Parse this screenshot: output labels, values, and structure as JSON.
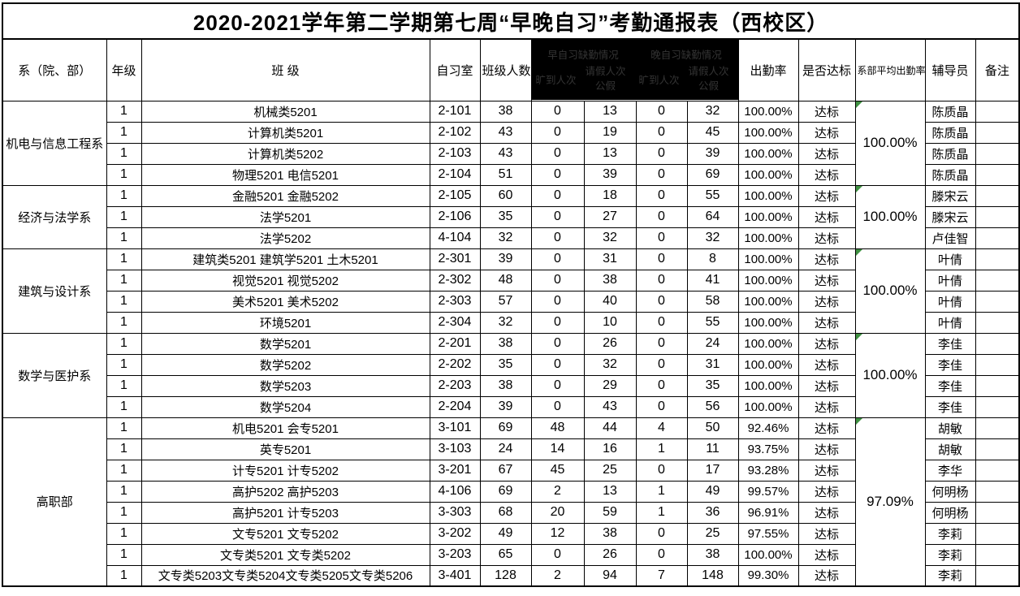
{
  "title": "2020-2021学年第二学期第七周“早晚自习”考勤通报表（西校区）",
  "header": {
    "department": "系（院、部）",
    "grade": "年级",
    "class_name": "班  级",
    "study_room": "自习室",
    "class_size": "班级人数",
    "redacted_groups": [
      {
        "title": "早自习缺勤情况",
        "sub_left": "旷到人次",
        "sub_right_line1": "请假人次",
        "sub_right_line2": "公假"
      },
      {
        "title": "晚自习缺勤情况",
        "sub_left": "旷到人次",
        "sub_right_line1": "请假人次",
        "sub_right_line2": "公假"
      }
    ],
    "attendance_rate": "出勤率",
    "meets_standard": "是否达标",
    "dept_average_rate": "系部平均出勤率",
    "counselor": "辅导员",
    "remark": "备注"
  },
  "colors": {
    "border": "#000000",
    "redaction_fill": "#000000",
    "comment_triangle": "#3f9142"
  },
  "groups": [
    {
      "department": "机电与信息工程系",
      "average_rate": "100.00%",
      "rows": [
        {
          "grade": "1",
          "class_name": "机械类5201",
          "room": "2-101",
          "class_size": "38",
          "morning_absence": "0",
          "morning_leave": "13",
          "evening_absence": "0",
          "evening_leave": "32",
          "attendance_rate": "100.00%",
          "meets_standard": "达标",
          "counselor": "陈质晶",
          "remark": ""
        },
        {
          "grade": "1",
          "class_name": "计算机类5201",
          "room": "2-102",
          "class_size": "43",
          "morning_absence": "0",
          "morning_leave": "19",
          "evening_absence": "0",
          "evening_leave": "45",
          "attendance_rate": "100.00%",
          "meets_standard": "达标",
          "counselor": "陈质晶",
          "remark": ""
        },
        {
          "grade": "1",
          "class_name": "计算机类5202",
          "room": "2-103",
          "class_size": "43",
          "morning_absence": "0",
          "morning_leave": "13",
          "evening_absence": "0",
          "evening_leave": "39",
          "attendance_rate": "100.00%",
          "meets_standard": "达标",
          "counselor": "陈质晶",
          "remark": ""
        },
        {
          "grade": "1",
          "class_name": "物理5201 电信5201",
          "room": "2-104",
          "class_size": "51",
          "morning_absence": "0",
          "morning_leave": "39",
          "evening_absence": "0",
          "evening_leave": "69",
          "attendance_rate": "100.00%",
          "meets_standard": "达标",
          "counselor": "陈质晶",
          "remark": ""
        }
      ]
    },
    {
      "department": "经济与法学系",
      "average_rate": "100.00%",
      "rows": [
        {
          "grade": "1",
          "class_name": "金融5201 金融5202",
          "room": "2-105",
          "class_size": "60",
          "morning_absence": "0",
          "morning_leave": "18",
          "evening_absence": "0",
          "evening_leave": "55",
          "attendance_rate": "100.00%",
          "meets_standard": "达标",
          "counselor": "滕宋云",
          "remark": ""
        },
        {
          "grade": "1",
          "class_name": "法学5201",
          "room": "2-106",
          "class_size": "35",
          "morning_absence": "0",
          "morning_leave": "27",
          "evening_absence": "0",
          "evening_leave": "64",
          "attendance_rate": "100.00%",
          "meets_standard": "达标",
          "counselor": "滕宋云",
          "remark": ""
        },
        {
          "grade": "1",
          "class_name": "法学5202",
          "room": "4-104",
          "class_size": "32",
          "morning_absence": "0",
          "morning_leave": "32",
          "evening_absence": "0",
          "evening_leave": "32",
          "attendance_rate": "100.00%",
          "meets_standard": "达标",
          "counselor": "卢佳智",
          "remark": ""
        }
      ]
    },
    {
      "department": "建筑与设计系",
      "average_rate": "100.00%",
      "rows": [
        {
          "grade": "1",
          "class_name": "建筑类5201 建筑学5201 土木5201",
          "room": "2-301",
          "class_size": "39",
          "morning_absence": "0",
          "morning_leave": "31",
          "evening_absence": "0",
          "evening_leave": "8",
          "attendance_rate": "100.00%",
          "meets_standard": "达标",
          "counselor": "叶倩",
          "remark": ""
        },
        {
          "grade": "1",
          "class_name": "视觉5201 视觉5202",
          "room": "2-302",
          "class_size": "48",
          "morning_absence": "0",
          "morning_leave": "38",
          "evening_absence": "0",
          "evening_leave": "41",
          "attendance_rate": "100.00%",
          "meets_standard": "达标",
          "counselor": "叶倩",
          "remark": ""
        },
        {
          "grade": "1",
          "class_name": "美术5201 美术5202",
          "room": "2-303",
          "class_size": "57",
          "morning_absence": "0",
          "morning_leave": "40",
          "evening_absence": "0",
          "evening_leave": "58",
          "attendance_rate": "100.00%",
          "meets_standard": "达标",
          "counselor": "叶倩",
          "remark": ""
        },
        {
          "grade": "1",
          "class_name": "环境5201",
          "room": "2-304",
          "class_size": "32",
          "morning_absence": "0",
          "morning_leave": "10",
          "evening_absence": "0",
          "evening_leave": "55",
          "attendance_rate": "100.00%",
          "meets_standard": "达标",
          "counselor": "叶倩",
          "remark": ""
        }
      ]
    },
    {
      "department": "数学与医护系",
      "average_rate": "100.00%",
      "rows": [
        {
          "grade": "1",
          "class_name": "数学5201",
          "room": "2-201",
          "class_size": "38",
          "morning_absence": "0",
          "morning_leave": "26",
          "evening_absence": "0",
          "evening_leave": "24",
          "attendance_rate": "100.00%",
          "meets_standard": "达标",
          "counselor": "李佳",
          "remark": ""
        },
        {
          "grade": "1",
          "class_name": "数学5202",
          "room": "2-202",
          "class_size": "35",
          "morning_absence": "0",
          "morning_leave": "32",
          "evening_absence": "0",
          "evening_leave": "31",
          "attendance_rate": "100.00%",
          "meets_standard": "达标",
          "counselor": "李佳",
          "remark": ""
        },
        {
          "grade": "1",
          "class_name": "数学5203",
          "room": "2-203",
          "class_size": "38",
          "morning_absence": "0",
          "morning_leave": "29",
          "evening_absence": "0",
          "evening_leave": "35",
          "attendance_rate": "100.00%",
          "meets_standard": "达标",
          "counselor": "李佳",
          "remark": ""
        },
        {
          "grade": "1",
          "class_name": "数学5204",
          "room": "2-204",
          "class_size": "39",
          "morning_absence": "0",
          "morning_leave": "43",
          "evening_absence": "0",
          "evening_leave": "56",
          "attendance_rate": "100.00%",
          "meets_standard": "达标",
          "counselor": "李佳",
          "remark": ""
        }
      ]
    },
    {
      "department": "高职部",
      "average_rate": "97.09%",
      "rows": [
        {
          "grade": "1",
          "class_name": "机电5201 会专5201",
          "room": "3-101",
          "class_size": "69",
          "morning_absence": "48",
          "morning_leave": "44",
          "evening_absence": "4",
          "evening_leave": "50",
          "attendance_rate": "92.46%",
          "meets_standard": "达标",
          "counselor": "胡敏",
          "remark": ""
        },
        {
          "grade": "1",
          "class_name": "英专5201",
          "room": "3-103",
          "class_size": "24",
          "morning_absence": "14",
          "morning_leave": "16",
          "evening_absence": "1",
          "evening_leave": "11",
          "attendance_rate": "93.75%",
          "meets_standard": "达标",
          "counselor": "胡敏",
          "remark": ""
        },
        {
          "grade": "1",
          "class_name": "计专5201 计专5202",
          "room": "3-201",
          "class_size": "67",
          "morning_absence": "45",
          "morning_leave": "25",
          "evening_absence": "0",
          "evening_leave": "17",
          "attendance_rate": "93.28%",
          "meets_standard": "达标",
          "counselor": "李华",
          "remark": ""
        },
        {
          "grade": "1",
          "class_name": "高护5202 高护5203",
          "room": "4-106",
          "class_size": "69",
          "morning_absence": "2",
          "morning_leave": "13",
          "evening_absence": "1",
          "evening_leave": "49",
          "attendance_rate": "99.57%",
          "meets_standard": "达标",
          "counselor": "何明杨",
          "remark": ""
        },
        {
          "grade": "1",
          "class_name": "高护5201 计专5203",
          "room": "3-303",
          "class_size": "68",
          "morning_absence": "20",
          "morning_leave": "59",
          "evening_absence": "1",
          "evening_leave": "36",
          "attendance_rate": "96.91%",
          "meets_standard": "达标",
          "counselor": "何明杨",
          "remark": ""
        },
        {
          "grade": "1",
          "class_name": "文专5201 文专5202",
          "room": "3-202",
          "class_size": "49",
          "morning_absence": "12",
          "morning_leave": "38",
          "evening_absence": "0",
          "evening_leave": "25",
          "attendance_rate": "97.55%",
          "meets_standard": "达标",
          "counselor": "李莉",
          "remark": ""
        },
        {
          "grade": "1",
          "class_name": "文专类5201 文专类5202",
          "room": "3-203",
          "class_size": "65",
          "morning_absence": "0",
          "morning_leave": "26",
          "evening_absence": "0",
          "evening_leave": "38",
          "attendance_rate": "100.00%",
          "meets_standard": "达标",
          "counselor": "李莉",
          "remark": ""
        },
        {
          "grade": "1",
          "class_name": "文专类5203文专类5204文专类5205文专类5206",
          "room": "3-401",
          "class_size": "128",
          "morning_absence": "2",
          "morning_leave": "94",
          "evening_absence": "7",
          "evening_leave": "148",
          "attendance_rate": "99.30%",
          "meets_standard": "达标",
          "counselor": "李莉",
          "remark": ""
        }
      ]
    }
  ]
}
